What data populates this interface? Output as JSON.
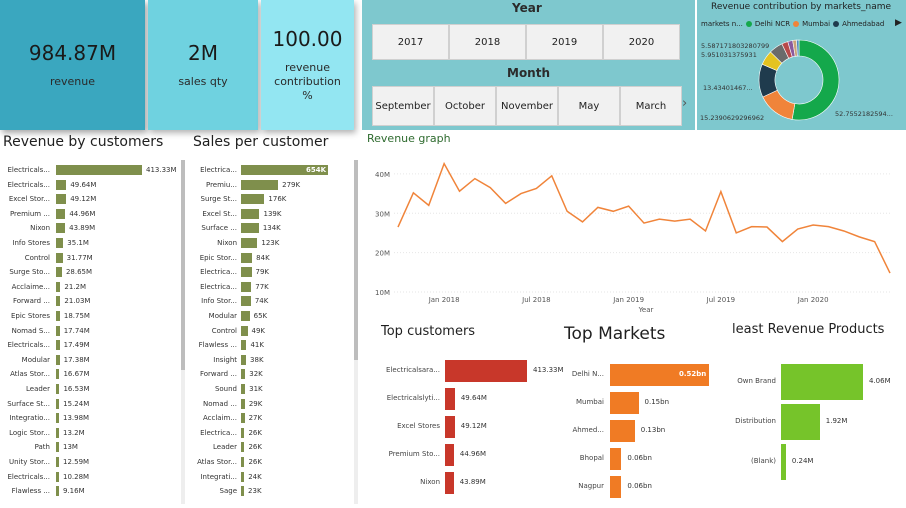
{
  "kpis": {
    "revenue": {
      "value": "984.87M",
      "label": "revenue"
    },
    "sales_qty": {
      "value": "2M",
      "label": "sales qty"
    },
    "contribution": {
      "value": "100.00",
      "label": "revenue contribution %"
    }
  },
  "filters": {
    "year_title": "Year",
    "years": [
      "2017",
      "2018",
      "2019",
      "2020"
    ],
    "month_title": "Month",
    "months": [
      "September",
      "October",
      "November",
      "May",
      "March"
    ]
  },
  "donut": {
    "title": "Revenue contribution by markets_name",
    "legend_label": "markets n...",
    "legend": [
      {
        "name": "Delhi NCR",
        "color": "#14a84b"
      },
      {
        "name": "Mumbai",
        "color": "#f0843a"
      },
      {
        "name": "Ahmedabad",
        "color": "#1f3b4d"
      }
    ],
    "labels": [
      "5.587171803280799",
      "5.951031375931",
      "13.43401467...",
      "15.2390629296962",
      "52.7552182594..."
    ],
    "slices": [
      {
        "value": 52.76,
        "color": "#14a84b"
      },
      {
        "value": 15.24,
        "color": "#f0843a"
      },
      {
        "value": 13.43,
        "color": "#1f3b4d"
      },
      {
        "value": 5.95,
        "color": "#e4c320"
      },
      {
        "value": 5.59,
        "color": "#6b6b6b"
      },
      {
        "value": 2.5,
        "color": "#b84a4a"
      },
      {
        "value": 2.0,
        "color": "#8a5a9e"
      },
      {
        "value": 1.5,
        "color": "#c9a37a"
      },
      {
        "value": 1.03,
        "color": "#4a8fbf"
      }
    ]
  },
  "revenue_by_customers": {
    "title": "Revenue by customers",
    "rows": [
      {
        "label": "Electricals...",
        "value": 413.33,
        "text": "413.33M"
      },
      {
        "label": "Electricals...",
        "value": 49.64,
        "text": "49.64M"
      },
      {
        "label": "Excel Stor...",
        "value": 49.12,
        "text": "49.12M"
      },
      {
        "label": "Premium ...",
        "value": 44.96,
        "text": "44.96M"
      },
      {
        "label": "Nixon",
        "value": 43.89,
        "text": "43.89M"
      },
      {
        "label": "Info Stores",
        "value": 35.1,
        "text": "35.1M"
      },
      {
        "label": "Control",
        "value": 31.77,
        "text": "31.77M"
      },
      {
        "label": "Surge Sto...",
        "value": 28.65,
        "text": "28.65M"
      },
      {
        "label": "Acclaime...",
        "value": 21.2,
        "text": "21.2M"
      },
      {
        "label": "Forward ...",
        "value": 21.03,
        "text": "21.03M"
      },
      {
        "label": "Epic Stores",
        "value": 18.75,
        "text": "18.75M"
      },
      {
        "label": "Nomad S...",
        "value": 17.74,
        "text": "17.74M"
      },
      {
        "label": "Electricals...",
        "value": 17.49,
        "text": "17.49M"
      },
      {
        "label": "Modular",
        "value": 17.38,
        "text": "17.38M"
      },
      {
        "label": "Atlas Stor...",
        "value": 16.67,
        "text": "16.67M"
      },
      {
        "label": "Leader",
        "value": 16.53,
        "text": "16.53M"
      },
      {
        "label": "Surface St...",
        "value": 15.24,
        "text": "15.24M"
      },
      {
        "label": "Integratio...",
        "value": 13.98,
        "text": "13.98M"
      },
      {
        "label": "Logic Stor...",
        "value": 13.2,
        "text": "13.2M"
      },
      {
        "label": "Path",
        "value": 13.0,
        "text": "13M"
      },
      {
        "label": "Unity Stor...",
        "value": 12.59,
        "text": "12.59M"
      },
      {
        "label": "Electricals...",
        "value": 10.28,
        "text": "10.28M"
      },
      {
        "label": "Flawless ...",
        "value": 9.16,
        "text": "9.16M"
      }
    ]
  },
  "sales_per_customer": {
    "title": "Sales per customer",
    "rows": [
      {
        "label": "Electrica...",
        "value": 654,
        "text": "654K"
      },
      {
        "label": "Premiu...",
        "value": 279,
        "text": "279K"
      },
      {
        "label": "Surge St...",
        "value": 176,
        "text": "176K"
      },
      {
        "label": "Excel St...",
        "value": 139,
        "text": "139K"
      },
      {
        "label": "Surface ...",
        "value": 134,
        "text": "134K"
      },
      {
        "label": "Nixon",
        "value": 123,
        "text": "123K"
      },
      {
        "label": "Epic Stor...",
        "value": 84,
        "text": "84K"
      },
      {
        "label": "Electrica...",
        "value": 79,
        "text": "79K"
      },
      {
        "label": "Electrica...",
        "value": 77,
        "text": "77K"
      },
      {
        "label": "Info Stor...",
        "value": 74,
        "text": "74K"
      },
      {
        "label": "Modular",
        "value": 65,
        "text": "65K"
      },
      {
        "label": "Control",
        "value": 49,
        "text": "49K"
      },
      {
        "label": "Flawless ...",
        "value": 41,
        "text": "41K"
      },
      {
        "label": "Insight",
        "value": 38,
        "text": "38K"
      },
      {
        "label": "Forward ...",
        "value": 32,
        "text": "32K"
      },
      {
        "label": "Sound",
        "value": 31,
        "text": "31K"
      },
      {
        "label": "Nomad ...",
        "value": 29,
        "text": "29K"
      },
      {
        "label": "Acclaim...",
        "value": 27,
        "text": "27K"
      },
      {
        "label": "Electrica...",
        "value": 26,
        "text": "26K"
      },
      {
        "label": "Leader",
        "value": 26,
        "text": "26K"
      },
      {
        "label": "Atlas Stor...",
        "value": 26,
        "text": "26K"
      },
      {
        "label": "Integrati...",
        "value": 24,
        "text": "24K"
      },
      {
        "label": "Sage",
        "value": 23,
        "text": "23K"
      }
    ]
  },
  "chart_data": [
    {
      "type": "line",
      "title": "Revenue graph",
      "xlabel": "Year",
      "ylabel": "",
      "ylim": [
        10,
        42
      ],
      "yticks": [
        "10M",
        "20M",
        "30M",
        "40M"
      ],
      "xticks": [
        "Jan 2018",
        "Jul 2018",
        "Jan 2019",
        "Jul 2019",
        "Jan 2020"
      ],
      "x": [
        "Oct 2017",
        "Nov 2017",
        "Dec 2017",
        "Jan 2018",
        "Feb 2018",
        "Mar 2018",
        "Apr 2018",
        "May 2018",
        "Jun 2018",
        "Jul 2018",
        "Aug 2018",
        "Sep 2018",
        "Oct 2018",
        "Nov 2018",
        "Dec 2018",
        "Jan 2019",
        "Feb 2019",
        "Mar 2019",
        "Apr 2019",
        "May 2019",
        "Jun 2019",
        "Jul 2019",
        "Aug 2019",
        "Sep 2019",
        "Oct 2019",
        "Nov 2019",
        "Dec 2019",
        "Jan 2020",
        "Feb 2020",
        "Mar 2020",
        "Apr 2020",
        "May 2020",
        "Jun 2020"
      ],
      "values": [
        26.5,
        35.2,
        32.0,
        42.6,
        35.6,
        38.8,
        36.5,
        32.5,
        35.0,
        36.3,
        39.5,
        30.5,
        27.8,
        31.5,
        30.5,
        31.8,
        27.5,
        28.5,
        28.0,
        28.5,
        25.5,
        35.5,
        25.0,
        26.6,
        26.5,
        22.8,
        26.0,
        27.0,
        26.6,
        25.5,
        24.0,
        22.8,
        14.8
      ],
      "color": "#f0843a"
    },
    {
      "type": "bar",
      "title": "Top customers",
      "categories": [
        "Electricalsara...",
        "Electricalslyti...",
        "Excel Stores",
        "Premium Sto...",
        "Nixon"
      ],
      "values": [
        413.33,
        49.64,
        49.12,
        44.96,
        43.89
      ],
      "labels": [
        "413.33M",
        "49.64M",
        "49.12M",
        "44.96M",
        "43.89M"
      ],
      "color": "#c8372a"
    },
    {
      "type": "bar",
      "title": "Top Markets",
      "categories": [
        "Delhi N...",
        "Mumbai",
        "Ahmed...",
        "Bhopal",
        "Nagpur"
      ],
      "values": [
        0.52,
        0.15,
        0.13,
        0.06,
        0.06
      ],
      "labels": [
        "0.52bn",
        "0.15bn",
        "0.13bn",
        "0.06bn",
        "0.06bn"
      ],
      "color": "#f07b24"
    },
    {
      "type": "bar",
      "title": "least Revenue Products",
      "categories": [
        "Own Brand",
        "Distribution",
        "(Blank)"
      ],
      "values": [
        4.06,
        1.92,
        0.24
      ],
      "labels": [
        "4.06M",
        "1.92M",
        "0.24M"
      ],
      "color": "#76c42a"
    }
  ]
}
